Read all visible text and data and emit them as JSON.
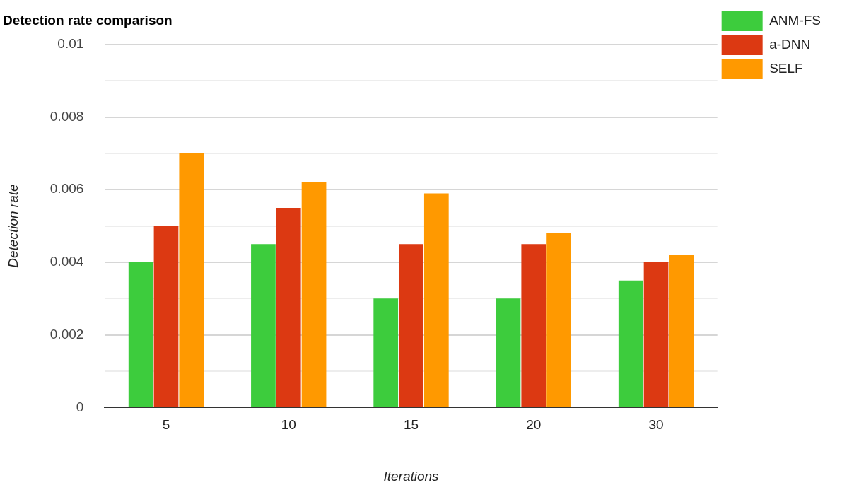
{
  "chart_data": {
    "type": "bar",
    "title": "Detection rate comparison",
    "xlabel": "Iterations",
    "ylabel": "Detection rate",
    "categories": [
      "5",
      "10",
      "15",
      "20",
      "30"
    ],
    "series": [
      {
        "name": "ANM-FS",
        "color": "#3dcc3d",
        "values": [
          0.004,
          0.0045,
          0.003,
          0.003,
          0.0035
        ]
      },
      {
        "name": "a-DNN",
        "color": "#dc3912",
        "values": [
          0.005,
          0.0055,
          0.0045,
          0.0045,
          0.004
        ]
      },
      {
        "name": "SELF",
        "color": "#ff9900",
        "values": [
          0.007,
          0.0062,
          0.0059,
          0.0048,
          0.0042
        ]
      }
    ],
    "ylim": [
      0,
      0.01
    ],
    "yticks": [
      0,
      {
        "value": 0.001,
        "label": null
      },
      "0.002",
      {
        "value": 0.003,
        "label": null
      },
      0.004,
      {
        "value": 0.005,
        "label": null
      },
      0.006,
      {
        "value": 0.007,
        "label": null
      },
      0.008,
      {
        "value": 0.009,
        "label": null
      },
      0.01
    ],
    "grid": "y",
    "legend": "top right"
  }
}
